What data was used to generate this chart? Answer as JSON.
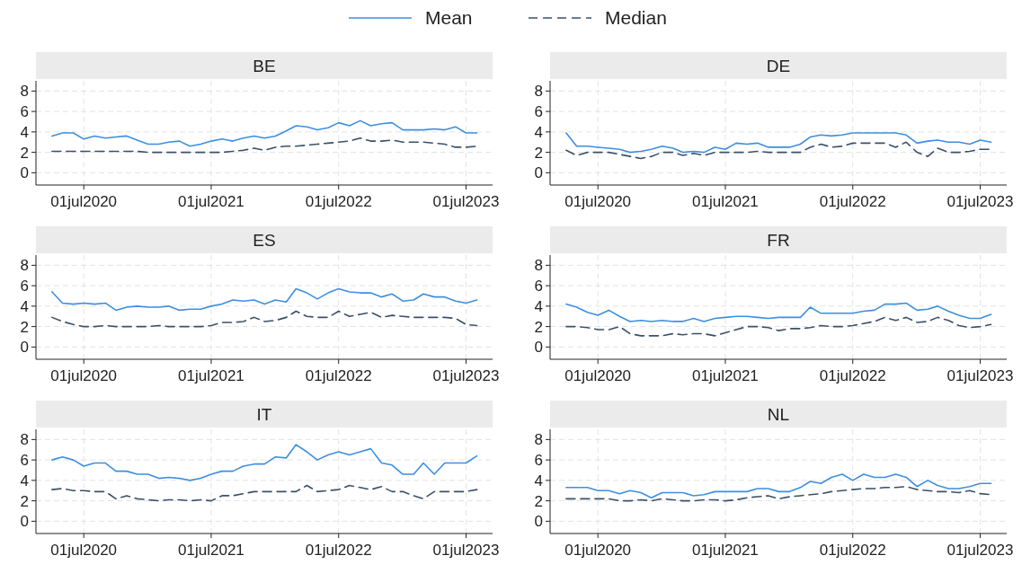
{
  "chart_data": [
    {
      "type": "line",
      "title": "BE",
      "legend": "top",
      "grid": true,
      "marker": "none",
      "x": [
        "2020-04",
        "2020-05",
        "2020-06",
        "2020-07",
        "2020-08",
        "2020-09",
        "2020-10",
        "2020-11",
        "2020-12",
        "2021-01",
        "2021-02",
        "2021-03",
        "2021-04",
        "2021-05",
        "2021-06",
        "2021-07",
        "2021-08",
        "2021-09",
        "2021-10",
        "2021-11",
        "2021-12",
        "2022-01",
        "2022-02",
        "2022-03",
        "2022-04",
        "2022-05",
        "2022-06",
        "2022-07",
        "2022-08",
        "2022-09",
        "2022-10",
        "2022-11",
        "2022-12",
        "2023-01",
        "2023-02",
        "2023-03",
        "2023-04",
        "2023-05",
        "2023-06",
        "2023-07",
        "2023-08"
      ],
      "xlim": [
        "2020-02-15",
        "2023-09-15"
      ],
      "xticks": [
        {
          "value": "2020-07-01",
          "label": "01jul2020"
        },
        {
          "value": "2021-07-01",
          "label": "01jul2021"
        },
        {
          "value": "2022-07-01",
          "label": "01jul2022"
        },
        {
          "value": "2023-07-01",
          "label": "01jul2023"
        }
      ],
      "ylim": [
        -1.2,
        9
      ],
      "yticks": [
        0,
        2,
        4,
        6,
        8
      ],
      "series": [
        {
          "name": "Mean",
          "color": "#3d8fe0",
          "line_style": "solid",
          "values": [
            3.6,
            3.9,
            3.9,
            3.3,
            3.6,
            3.4,
            3.5,
            3.6,
            3.2,
            2.8,
            2.8,
            3.0,
            3.1,
            2.6,
            2.8,
            3.1,
            3.3,
            3.1,
            3.4,
            3.6,
            3.4,
            3.6,
            4.1,
            4.6,
            4.5,
            4.2,
            4.4,
            4.9,
            4.6,
            5.1,
            4.6,
            4.8,
            4.9,
            4.2,
            4.2,
            4.2,
            4.3,
            4.2,
            4.5,
            3.9,
            3.9
          ]
        },
        {
          "name": "Median",
          "color": "#3b5068",
          "line_style": "dashed",
          "values": [
            2.1,
            2.1,
            2.1,
            2.1,
            2.1,
            2.1,
            2.1,
            2.1,
            2.1,
            2.0,
            2.0,
            2.0,
            2.0,
            2.0,
            2.0,
            2.0,
            2.0,
            2.1,
            2.2,
            2.4,
            2.2,
            2.5,
            2.6,
            2.6,
            2.7,
            2.8,
            2.9,
            3.0,
            3.1,
            3.4,
            3.1,
            3.1,
            3.2,
            3.0,
            3.0,
            3.0,
            2.9,
            2.8,
            2.5,
            2.5,
            2.6
          ]
        }
      ]
    },
    {
      "type": "line",
      "title": "DE",
      "grid": true,
      "marker": "none",
      "x": [
        "2020-04",
        "2020-05",
        "2020-06",
        "2020-07",
        "2020-08",
        "2020-09",
        "2020-10",
        "2020-11",
        "2020-12",
        "2021-01",
        "2021-02",
        "2021-03",
        "2021-04",
        "2021-05",
        "2021-06",
        "2021-07",
        "2021-08",
        "2021-09",
        "2021-10",
        "2021-11",
        "2021-12",
        "2022-01",
        "2022-02",
        "2022-03",
        "2022-04",
        "2022-05",
        "2022-06",
        "2022-07",
        "2022-08",
        "2022-09",
        "2022-10",
        "2022-11",
        "2022-12",
        "2023-01",
        "2023-02",
        "2023-03",
        "2023-04",
        "2023-05",
        "2023-06",
        "2023-07",
        "2023-08"
      ],
      "xlim": [
        "2020-02-15",
        "2023-09-15"
      ],
      "xticks": [
        {
          "value": "2020-07-01",
          "label": "01jul2020"
        },
        {
          "value": "2021-07-01",
          "label": "01jul2021"
        },
        {
          "value": "2022-07-01",
          "label": "01jul2022"
        },
        {
          "value": "2023-07-01",
          "label": "01jul2023"
        }
      ],
      "ylim": [
        -1.2,
        9
      ],
      "yticks": [
        0,
        2,
        4,
        6,
        8
      ],
      "series": [
        {
          "color": "#3d8fe0",
          "line_style": "solid",
          "values": [
            3.9,
            2.6,
            2.6,
            2.5,
            2.4,
            2.3,
            2.0,
            2.1,
            2.3,
            2.6,
            2.4,
            2.0,
            2.1,
            2.0,
            2.5,
            2.3,
            2.9,
            2.8,
            2.9,
            2.5,
            2.5,
            2.5,
            2.8,
            3.5,
            3.7,
            3.6,
            3.7,
            3.9,
            3.9,
            3.9,
            3.9,
            3.9,
            3.7,
            2.9,
            3.1,
            3.2,
            3.0,
            3.0,
            2.8,
            3.2,
            3.0
          ]
        },
        {
          "color": "#3b5068",
          "line_style": "dashed",
          "values": [
            2.2,
            1.7,
            2.0,
            2.0,
            2.0,
            1.8,
            1.6,
            1.4,
            1.6,
            2.0,
            2.0,
            1.7,
            1.9,
            1.7,
            2.0,
            2.0,
            2.0,
            2.0,
            2.1,
            2.0,
            2.0,
            2.0,
            2.0,
            2.5,
            2.8,
            2.5,
            2.6,
            2.9,
            2.9,
            2.9,
            2.9,
            2.5,
            3.0,
            2.0,
            1.6,
            2.4,
            2.0,
            2.0,
            2.1,
            2.3,
            2.3
          ]
        }
      ]
    },
    {
      "type": "line",
      "title": "ES",
      "grid": true,
      "marker": "none",
      "x": [
        "2020-04",
        "2020-05",
        "2020-06",
        "2020-07",
        "2020-08",
        "2020-09",
        "2020-10",
        "2020-11",
        "2020-12",
        "2021-01",
        "2021-02",
        "2021-03",
        "2021-04",
        "2021-05",
        "2021-06",
        "2021-07",
        "2021-08",
        "2021-09",
        "2021-10",
        "2021-11",
        "2021-12",
        "2022-01",
        "2022-02",
        "2022-03",
        "2022-04",
        "2022-05",
        "2022-06",
        "2022-07",
        "2022-08",
        "2022-09",
        "2022-10",
        "2022-11",
        "2022-12",
        "2023-01",
        "2023-02",
        "2023-03",
        "2023-04",
        "2023-05",
        "2023-06",
        "2023-07",
        "2023-08"
      ],
      "xlim": [
        "2020-02-15",
        "2023-09-15"
      ],
      "xticks": [
        {
          "value": "2020-07-01",
          "label": "01jul2020"
        },
        {
          "value": "2021-07-01",
          "label": "01jul2021"
        },
        {
          "value": "2022-07-01",
          "label": "01jul2022"
        },
        {
          "value": "2023-07-01",
          "label": "01jul2023"
        }
      ],
      "ylim": [
        -1.2,
        9
      ],
      "yticks": [
        0,
        2,
        4,
        6,
        8
      ],
      "series": [
        {
          "color": "#3d8fe0",
          "line_style": "solid",
          "values": [
            5.4,
            4.3,
            4.2,
            4.3,
            4.2,
            4.3,
            3.6,
            3.9,
            4.0,
            3.9,
            3.9,
            4.0,
            3.6,
            3.7,
            3.7,
            4.0,
            4.2,
            4.6,
            4.5,
            4.6,
            4.2,
            4.6,
            4.4,
            5.7,
            5.3,
            4.7,
            5.3,
            5.7,
            5.4,
            5.3,
            5.3,
            4.9,
            5.2,
            4.5,
            4.6,
            5.2,
            4.9,
            4.9,
            4.5,
            4.3,
            4.6
          ]
        },
        {
          "color": "#3b5068",
          "line_style": "dashed",
          "values": [
            2.9,
            2.5,
            2.2,
            2.0,
            2.0,
            2.1,
            2.0,
            2.0,
            2.0,
            2.0,
            2.1,
            2.0,
            2.0,
            2.0,
            2.0,
            2.1,
            2.4,
            2.4,
            2.5,
            2.9,
            2.5,
            2.6,
            2.9,
            3.5,
            3.0,
            2.9,
            2.9,
            3.5,
            3.0,
            3.2,
            3.4,
            2.9,
            3.1,
            3.0,
            2.9,
            2.9,
            2.9,
            2.9,
            2.8,
            2.2,
            2.1
          ]
        }
      ]
    },
    {
      "type": "line",
      "title": "FR",
      "grid": true,
      "marker": "none",
      "x": [
        "2020-04",
        "2020-05",
        "2020-06",
        "2020-07",
        "2020-08",
        "2020-09",
        "2020-10",
        "2020-11",
        "2020-12",
        "2021-01",
        "2021-02",
        "2021-03",
        "2021-04",
        "2021-05",
        "2021-06",
        "2021-07",
        "2021-08",
        "2021-09",
        "2021-10",
        "2021-11",
        "2021-12",
        "2022-01",
        "2022-02",
        "2022-03",
        "2022-04",
        "2022-05",
        "2022-06",
        "2022-07",
        "2022-08",
        "2022-09",
        "2022-10",
        "2022-11",
        "2022-12",
        "2023-01",
        "2023-02",
        "2023-03",
        "2023-04",
        "2023-05",
        "2023-06",
        "2023-07",
        "2023-08"
      ],
      "xlim": [
        "2020-02-15",
        "2023-09-15"
      ],
      "xticks": [
        {
          "value": "2020-07-01",
          "label": "01jul2020"
        },
        {
          "value": "2021-07-01",
          "label": "01jul2021"
        },
        {
          "value": "2022-07-01",
          "label": "01jul2022"
        },
        {
          "value": "2023-07-01",
          "label": "01jul2023"
        }
      ],
      "ylim": [
        -1.2,
        9
      ],
      "yticks": [
        0,
        2,
        4,
        6,
        8
      ],
      "series": [
        {
          "color": "#3d8fe0",
          "line_style": "solid",
          "values": [
            4.2,
            3.9,
            3.4,
            3.1,
            3.6,
            3.0,
            2.5,
            2.6,
            2.5,
            2.6,
            2.5,
            2.5,
            2.8,
            2.5,
            2.8,
            2.9,
            3.0,
            3.0,
            2.9,
            2.8,
            2.9,
            2.9,
            2.9,
            3.9,
            3.3,
            3.3,
            3.3,
            3.3,
            3.5,
            3.6,
            4.2,
            4.2,
            4.3,
            3.6,
            3.7,
            4.0,
            3.5,
            3.1,
            2.8,
            2.8,
            3.2
          ]
        },
        {
          "color": "#3b5068",
          "line_style": "dashed",
          "values": [
            2.0,
            2.0,
            1.9,
            1.7,
            1.7,
            2.0,
            1.3,
            1.1,
            1.1,
            1.1,
            1.3,
            1.2,
            1.3,
            1.3,
            1.1,
            1.4,
            1.7,
            2.0,
            2.0,
            1.9,
            1.6,
            1.8,
            1.8,
            1.9,
            2.1,
            2.0,
            2.0,
            2.1,
            2.3,
            2.5,
            2.9,
            2.6,
            2.9,
            2.4,
            2.5,
            2.9,
            2.6,
            2.1,
            1.9,
            2.0,
            2.2
          ]
        }
      ]
    },
    {
      "type": "line",
      "title": "IT",
      "grid": true,
      "marker": "none",
      "x": [
        "2020-04",
        "2020-05",
        "2020-06",
        "2020-07",
        "2020-08",
        "2020-09",
        "2020-10",
        "2020-11",
        "2020-12",
        "2021-01",
        "2021-02",
        "2021-03",
        "2021-04",
        "2021-05",
        "2021-06",
        "2021-07",
        "2021-08",
        "2021-09",
        "2021-10",
        "2021-11",
        "2021-12",
        "2022-01",
        "2022-02",
        "2022-03",
        "2022-04",
        "2022-05",
        "2022-06",
        "2022-07",
        "2022-08",
        "2022-09",
        "2022-10",
        "2022-11",
        "2022-12",
        "2023-01",
        "2023-02",
        "2023-03",
        "2023-04",
        "2023-05",
        "2023-06",
        "2023-07",
        "2023-08"
      ],
      "xlim": [
        "2020-02-15",
        "2023-09-15"
      ],
      "xticks": [
        {
          "value": "2020-07-01",
          "label": "01jul2020"
        },
        {
          "value": "2021-07-01",
          "label": "01jul2021"
        },
        {
          "value": "2022-07-01",
          "label": "01jul2022"
        },
        {
          "value": "2023-07-01",
          "label": "01jul2023"
        }
      ],
      "ylim": [
        -1.2,
        9
      ],
      "yticks": [
        0,
        2,
        4,
        6,
        8
      ],
      "series": [
        {
          "color": "#3d8fe0",
          "line_style": "solid",
          "values": [
            6.0,
            6.3,
            6.0,
            5.4,
            5.7,
            5.7,
            4.9,
            4.9,
            4.6,
            4.6,
            4.2,
            4.3,
            4.2,
            4.0,
            4.2,
            4.6,
            4.9,
            4.9,
            5.4,
            5.6,
            5.6,
            6.3,
            6.2,
            7.5,
            6.8,
            6.0,
            6.5,
            6.8,
            6.5,
            6.8,
            7.1,
            5.7,
            5.5,
            4.6,
            4.6,
            5.7,
            4.6,
            5.7,
            5.7,
            5.7,
            6.4
          ]
        },
        {
          "color": "#3b5068",
          "line_style": "dashed",
          "values": [
            3.1,
            3.2,
            3.0,
            3.0,
            2.9,
            2.9,
            2.2,
            2.5,
            2.2,
            2.1,
            2.0,
            2.1,
            2.1,
            2.0,
            2.1,
            2.0,
            2.5,
            2.5,
            2.7,
            2.9,
            2.9,
            2.9,
            2.9,
            2.9,
            3.5,
            2.9,
            3.0,
            3.1,
            3.5,
            3.3,
            3.1,
            3.4,
            2.9,
            2.9,
            2.5,
            2.2,
            2.9,
            2.9,
            2.9,
            2.9,
            3.1
          ]
        }
      ]
    },
    {
      "type": "line",
      "title": "NL",
      "grid": true,
      "marker": "none",
      "x": [
        "2020-04",
        "2020-05",
        "2020-06",
        "2020-07",
        "2020-08",
        "2020-09",
        "2020-10",
        "2020-11",
        "2020-12",
        "2021-01",
        "2021-02",
        "2021-03",
        "2021-04",
        "2021-05",
        "2021-06",
        "2021-07",
        "2021-08",
        "2021-09",
        "2021-10",
        "2021-11",
        "2021-12",
        "2022-01",
        "2022-02",
        "2022-03",
        "2022-04",
        "2022-05",
        "2022-06",
        "2022-07",
        "2022-08",
        "2022-09",
        "2022-10",
        "2022-11",
        "2022-12",
        "2023-01",
        "2023-02",
        "2023-03",
        "2023-04",
        "2023-05",
        "2023-06",
        "2023-07",
        "2023-08"
      ],
      "xlim": [
        "2020-02-15",
        "2023-09-15"
      ],
      "xticks": [
        {
          "value": "2020-07-01",
          "label": "01jul2020"
        },
        {
          "value": "2021-07-01",
          "label": "01jul2021"
        },
        {
          "value": "2022-07-01",
          "label": "01jul2022"
        },
        {
          "value": "2023-07-01",
          "label": "01jul2023"
        }
      ],
      "ylim": [
        -1.2,
        9
      ],
      "yticks": [
        0,
        2,
        4,
        6,
        8
      ],
      "series": [
        {
          "color": "#3d8fe0",
          "line_style": "solid",
          "values": [
            3.3,
            3.3,
            3.3,
            3.0,
            3.0,
            2.7,
            3.0,
            2.8,
            2.3,
            2.8,
            2.8,
            2.8,
            2.5,
            2.6,
            2.9,
            2.9,
            2.9,
            2.9,
            3.2,
            3.2,
            2.9,
            2.9,
            3.3,
            3.9,
            3.7,
            4.3,
            4.6,
            4.0,
            4.6,
            4.3,
            4.3,
            4.6,
            4.3,
            3.4,
            4.0,
            3.5,
            3.2,
            3.2,
            3.4,
            3.7,
            3.7
          ]
        },
        {
          "color": "#3b5068",
          "line_style": "dashed",
          "values": [
            2.2,
            2.2,
            2.2,
            2.2,
            2.2,
            2.0,
            2.0,
            2.1,
            2.0,
            2.2,
            2.1,
            2.0,
            2.0,
            2.1,
            2.1,
            2.0,
            2.1,
            2.3,
            2.4,
            2.5,
            2.2,
            2.4,
            2.5,
            2.6,
            2.7,
            2.9,
            3.0,
            3.1,
            3.2,
            3.2,
            3.3,
            3.3,
            3.4,
            3.1,
            3.0,
            2.9,
            2.9,
            2.8,
            3.0,
            2.7,
            2.6
          ]
        }
      ]
    }
  ]
}
